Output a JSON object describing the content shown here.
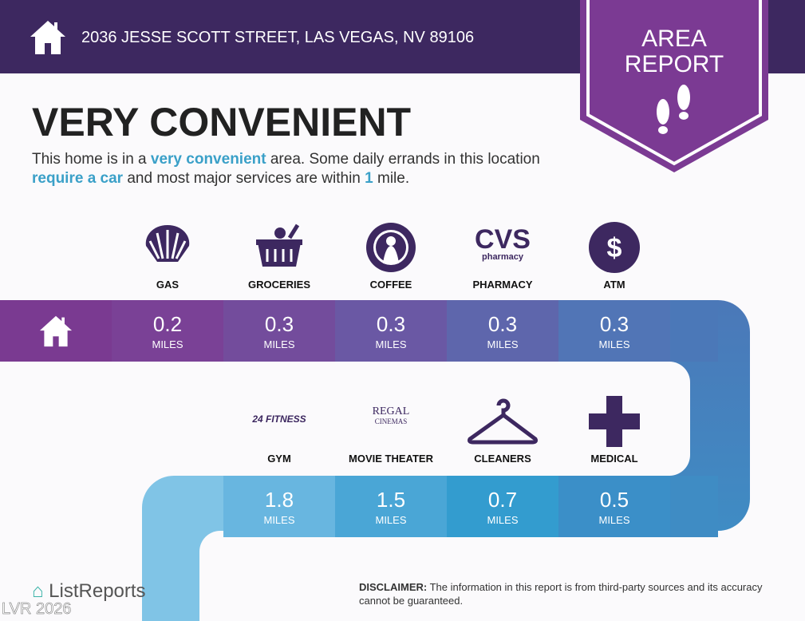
{
  "header": {
    "address": "2036 JESSE SCOTT STREET, LAS VEGAS, NV 89106",
    "badge_line1": "AREA",
    "badge_line2": "REPORT"
  },
  "title": "VERY CONVENIENT",
  "description": {
    "p1": "This home is in a ",
    "h1": "very convenient",
    "p2": " area. Some daily errands in this location ",
    "h2": "require a car",
    "p3": " and most major services are within ",
    "h3": "1",
    "p4": " mile."
  },
  "unit": "MILES",
  "row1": [
    {
      "label": "GAS",
      "value": "0.2",
      "icon": "shell-icon"
    },
    {
      "label": "GROCERIES",
      "value": "0.3",
      "icon": "basket-icon"
    },
    {
      "label": "COFFEE",
      "value": "0.3",
      "icon": "starbucks-icon"
    },
    {
      "label": "PHARMACY",
      "value": "0.3",
      "icon": "cvs-icon",
      "logo1": "CVS",
      "logo2": "pharmacy"
    },
    {
      "label": "ATM",
      "value": "0.3",
      "icon": "dollar-icon"
    }
  ],
  "row2": [
    {
      "label": "GYM",
      "value": "1.8",
      "icon": "fitness-icon",
      "logo1": "24 FITNESS"
    },
    {
      "label": "MOVIE THEATER",
      "value": "1.5",
      "icon": "regal-icon",
      "logo1": "REGAL",
      "logo2": "CINEMAS"
    },
    {
      "label": "CLEANERS",
      "value": "0.7",
      "icon": "hanger-icon"
    },
    {
      "label": "MEDICAL",
      "value": "0.5",
      "icon": "cross-icon"
    }
  ],
  "footer": {
    "brand": "ListReports",
    "disclaimer_label": "DISCLAIMER:",
    "disclaimer": " The information in this report is from third-party sources and its accuracy cannot be guaranteed.",
    "watermark": "LVR 2026"
  },
  "colors": {
    "header": "#3d2860",
    "badge": "#7b3a93",
    "accent": "#3aa0c8"
  }
}
